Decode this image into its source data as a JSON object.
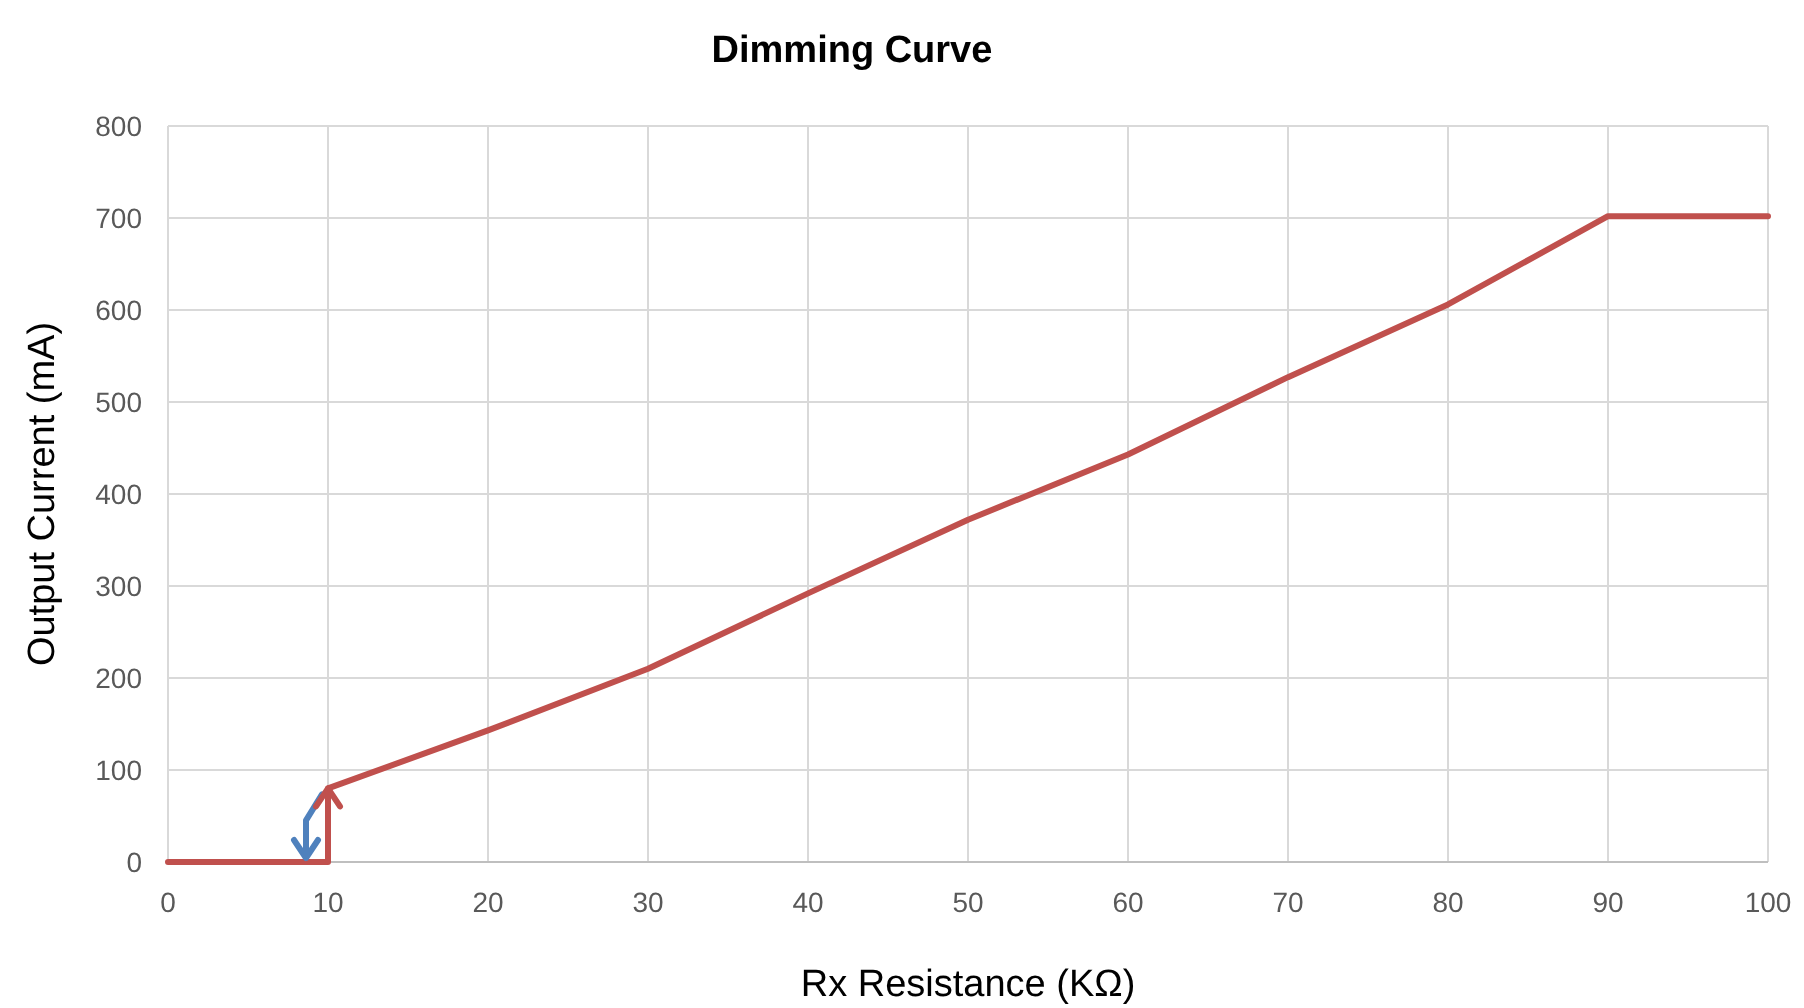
{
  "chart_data": {
    "type": "line",
    "title": "Dimming Curve",
    "xlabel": "Rx Resistance (KΩ)",
    "ylabel": "Output Current (mA)",
    "xlim": [
      0,
      100
    ],
    "xticks": [
      0,
      10,
      20,
      30,
      40,
      50,
      60,
      70,
      80,
      90,
      100
    ],
    "ylim": [
      0,
      800
    ],
    "yticks": [
      0,
      100,
      200,
      300,
      400,
      500,
      600,
      700,
      800
    ],
    "grid": true,
    "series": [
      {
        "color": "#c0504d",
        "x": [
          0,
          10,
          10,
          20,
          30,
          40,
          50,
          60,
          70,
          80,
          90,
          100
        ],
        "values": [
          0,
          0,
          80,
          143,
          210,
          292,
          372,
          443,
          527,
          606,
          702,
          702
        ]
      }
    ]
  }
}
